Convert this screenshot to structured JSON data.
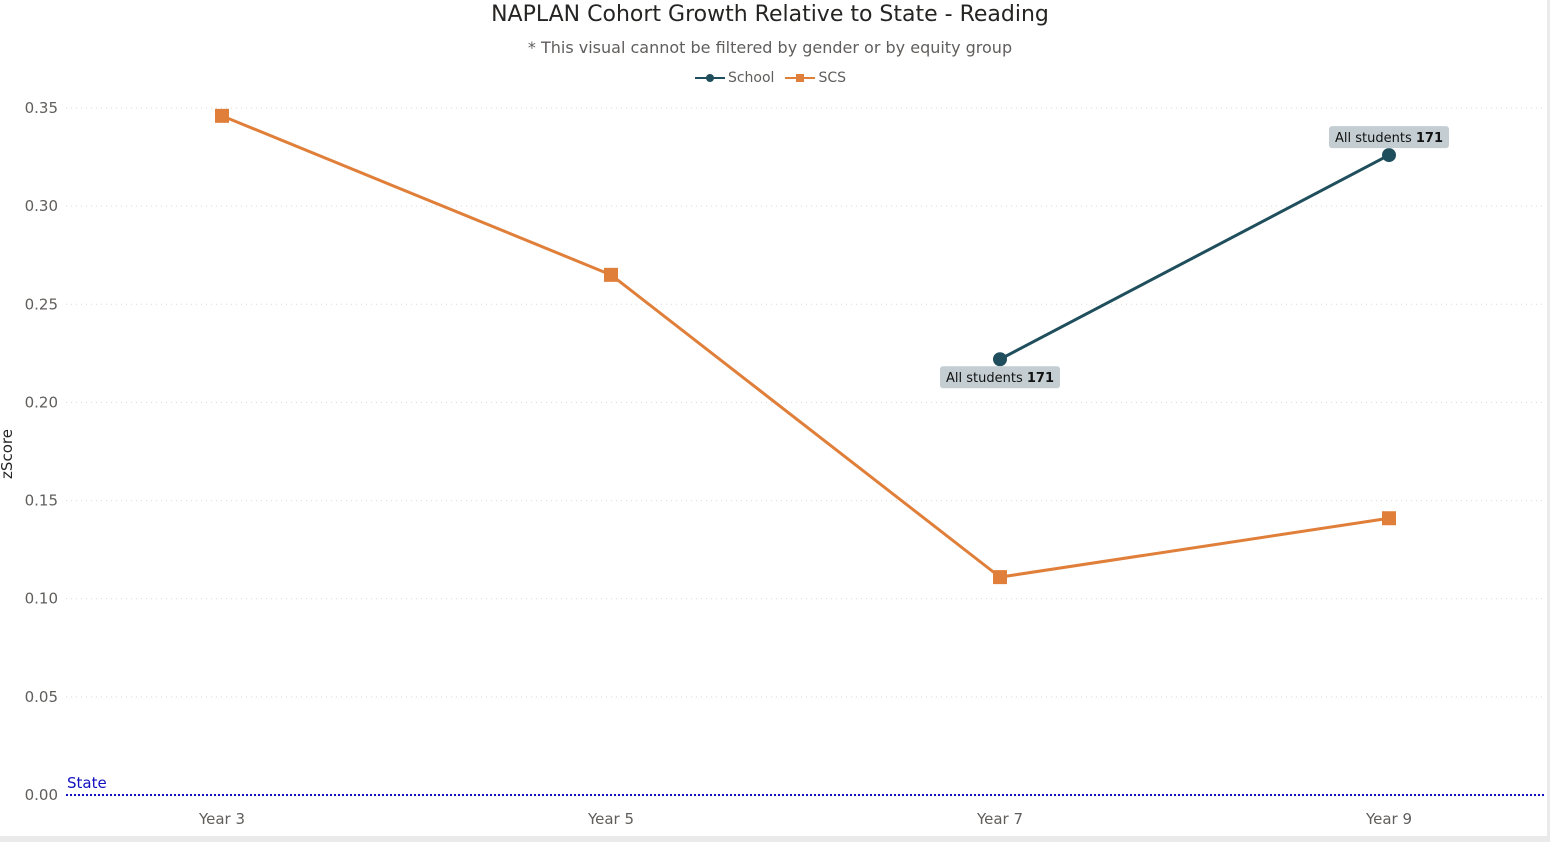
{
  "chart_data": {
    "type": "line",
    "title": "NAPLAN Cohort Growth Relative to State - Reading",
    "subtitle": "* This visual cannot be filtered by gender or by equity group",
    "ylabel": "zScore",
    "xlabel": "",
    "categories": [
      "Year 3",
      "Year 5",
      "Year 7",
      "Year 9"
    ],
    "ylim": [
      0,
      0.35
    ],
    "yticks": [
      "0.00",
      "0.05",
      "0.10",
      "0.15",
      "0.20",
      "0.25",
      "0.30",
      "0.35"
    ],
    "grid": true,
    "legend_position": "top-center",
    "series": [
      {
        "name": "School",
        "color": "#1f4e5c",
        "marker": "circle",
        "values": [
          null,
          null,
          0.222,
          0.326
        ],
        "labels": [
          null,
          null,
          {
            "text": "All students",
            "bold": "171"
          },
          {
            "text": "All students",
            "bold": "171"
          }
        ]
      },
      {
        "name": "SCS",
        "color": "#e07f3a",
        "marker": "square",
        "values": [
          0.346,
          0.265,
          0.111,
          0.141
        ]
      }
    ],
    "reference_line": {
      "label": "State",
      "value": 0,
      "color": "#1010c0"
    }
  }
}
